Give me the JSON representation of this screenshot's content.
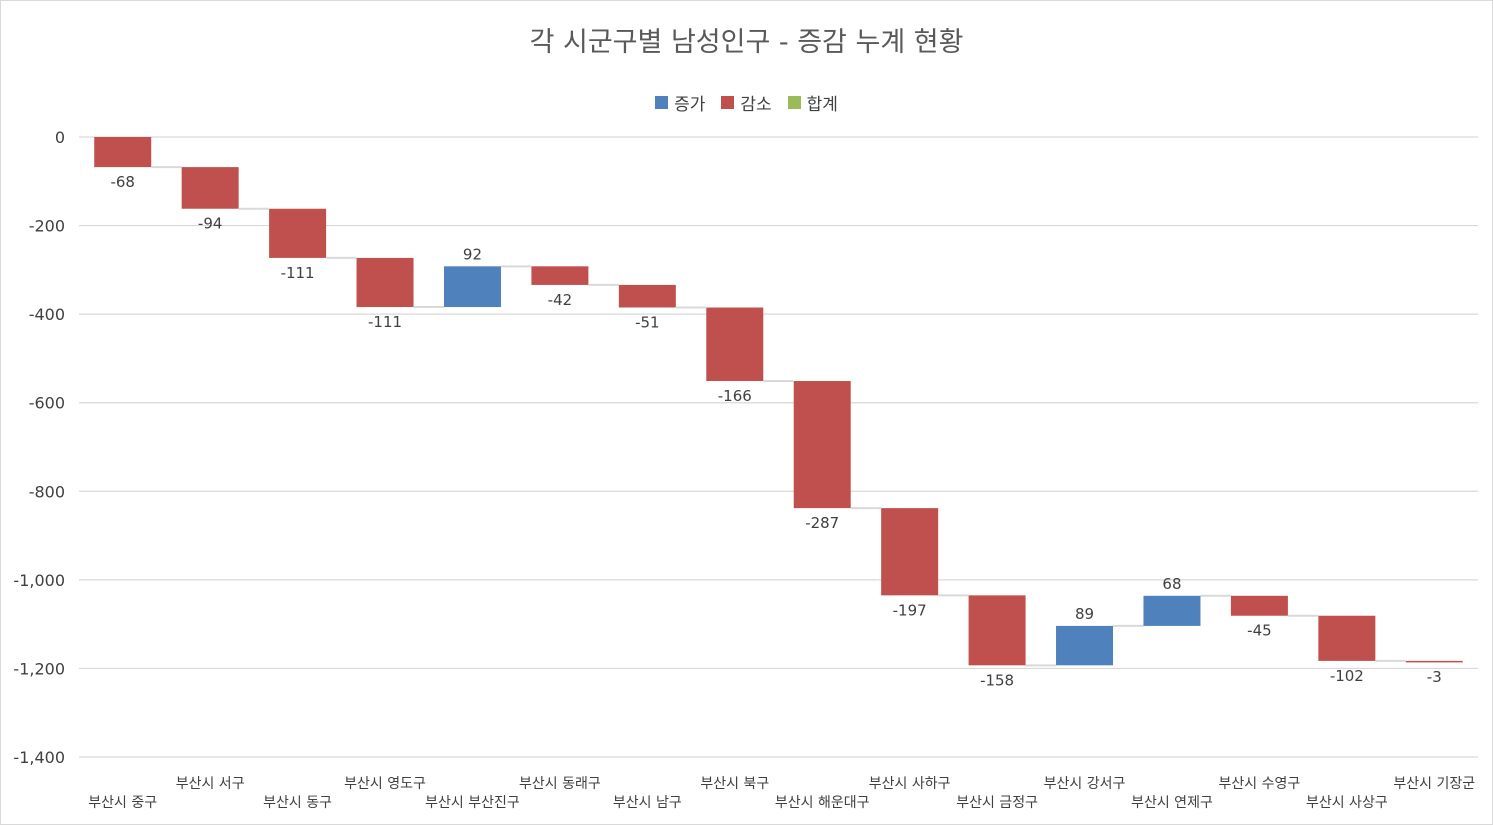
{
  "chart_data": {
    "type": "bar",
    "subtype": "waterfall",
    "title": "각 시군구별 남성인구 - 증감 누계 현황",
    "legend": {
      "position": "top",
      "items": [
        {
          "name": "증가",
          "color": "#4f81bd"
        },
        {
          "name": "감소",
          "color": "#c0504d"
        },
        {
          "name": "합계",
          "color": "#9bbb59"
        }
      ]
    },
    "categories": [
      "부산시 중구",
      "부산시 서구",
      "부산시 동구",
      "부산시 영도구",
      "부산시 부산진구",
      "부산시 동래구",
      "부산시 남구",
      "부산시 북구",
      "부산시 해운대구",
      "부산시 사하구",
      "부산시 금정구",
      "부산시 강서구",
      "부산시 연제구",
      "부산시 수영구",
      "부산시 사상구",
      "부산시 기장군"
    ],
    "values": [
      -68,
      -94,
      -111,
      -111,
      92,
      -42,
      -51,
      -166,
      -287,
      -197,
      -158,
      89,
      68,
      -45,
      -102,
      -3
    ],
    "value_labels": [
      "-68",
      "-94",
      "-111",
      "-111",
      "92",
      "-42",
      "-51",
      "-166",
      "-287",
      "-197",
      "-158",
      "89",
      "68",
      "-45",
      "-102",
      "-3"
    ],
    "ylim": [
      -1400,
      0
    ],
    "yticks": [
      0,
      -200,
      -400,
      -600,
      -800,
      -1000,
      -1200,
      -1400
    ],
    "ytick_labels": [
      "0",
      "-200",
      "-400",
      "-600",
      "-800",
      "-1,000",
      "-1,200",
      "-1,400"
    ],
    "grid": true,
    "colors": {
      "increase": "#4f81bd",
      "decrease": "#c0504d",
      "total": "#9bbb59",
      "gridline": "#d9d9d9",
      "connector": "#d9d9d9"
    }
  }
}
